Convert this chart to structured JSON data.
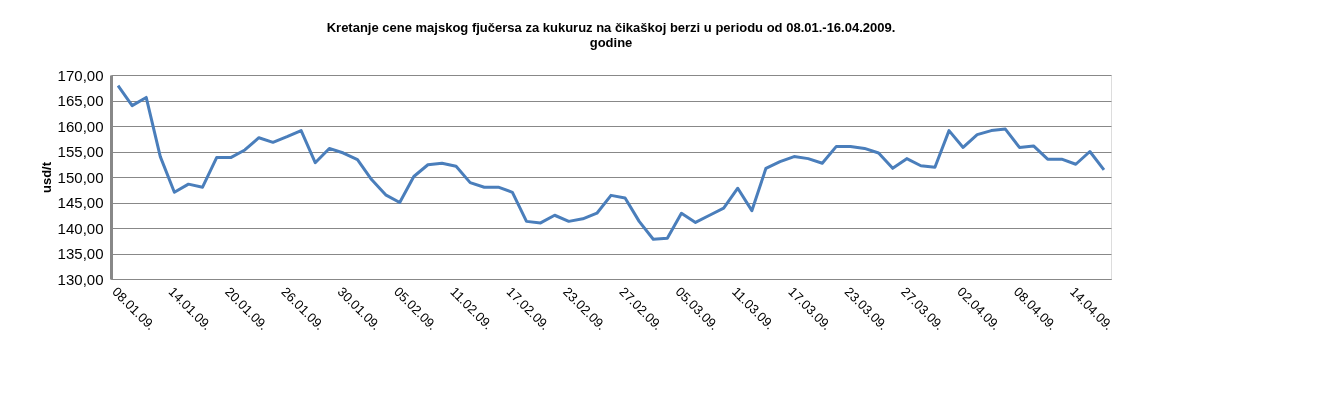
{
  "chart_data": {
    "type": "line",
    "title": "Kretanje cene majskog fjučersa za kukuruz na čikaškoj berzi u periodu od 08.01.-16.04.2009. godine",
    "ylabel": "usd/t",
    "categories": [
      "08.01.09.",
      null,
      null,
      null,
      "14.01.09.",
      null,
      null,
      null,
      "20.01.09.",
      null,
      null,
      null,
      "26.01.09.",
      null,
      null,
      null,
      "30.01.09.",
      null,
      null,
      null,
      "05.02.09.",
      null,
      null,
      null,
      "11.02.09.",
      null,
      null,
      null,
      "17.02.09.",
      null,
      null,
      null,
      "23.02.09.",
      null,
      null,
      null,
      "27.02.09.",
      null,
      null,
      null,
      "05.03.09.",
      null,
      null,
      null,
      "11.03.09.",
      null,
      null,
      null,
      "17.03.09.",
      null,
      null,
      null,
      "23.03.09.",
      null,
      null,
      null,
      "27.03.09.",
      null,
      null,
      null,
      "02.04.09.",
      null,
      null,
      null,
      "08.04.09.",
      null,
      null,
      null,
      "14.04.09.",
      null,
      null
    ],
    "series": [
      {
        "color": "#4a7ebb",
        "values": [
          167.9,
          164.0,
          165.6,
          154.0,
          147.0,
          148.6,
          148.0,
          153.8,
          153.8,
          155.3,
          157.7,
          156.8,
          157.9,
          159.1,
          152.8,
          155.6,
          154.7,
          153.4,
          149.5,
          146.5,
          145.0,
          150.1,
          152.4,
          152.7,
          152.1,
          148.9,
          148.0,
          148.0,
          147.0,
          141.3,
          141.0,
          142.5,
          141.3,
          141.8,
          142.9,
          146.4,
          145.9,
          141.3,
          137.8,
          138.0,
          142.9,
          141.1,
          142.5,
          143.9,
          147.8,
          143.4,
          151.7,
          153.0,
          154.0,
          153.6,
          152.7,
          156.0,
          156.0,
          155.6,
          154.7,
          151.7,
          153.6,
          152.2,
          151.9,
          159.1,
          155.8,
          158.3,
          159.1,
          159.4,
          155.8,
          156.1,
          153.5,
          153.5,
          152.5,
          155.0,
          151.4
        ]
      }
    ],
    "ylim": [
      130,
      170
    ],
    "yticks": [
      {
        "value": 130,
        "label": "130,00"
      },
      {
        "value": 135,
        "label": "135,00"
      },
      {
        "value": 140,
        "label": "140,00"
      },
      {
        "value": 145,
        "label": "145,00"
      },
      {
        "value": 150,
        "label": "150,00"
      },
      {
        "value": 155,
        "label": "155,00"
      },
      {
        "value": 160,
        "label": "160,00"
      },
      {
        "value": 165,
        "label": "165,00"
      },
      {
        "value": 170,
        "label": "170,00"
      }
    ],
    "grid": "y",
    "legend": false,
    "marker": "none",
    "line_style": "solid"
  }
}
